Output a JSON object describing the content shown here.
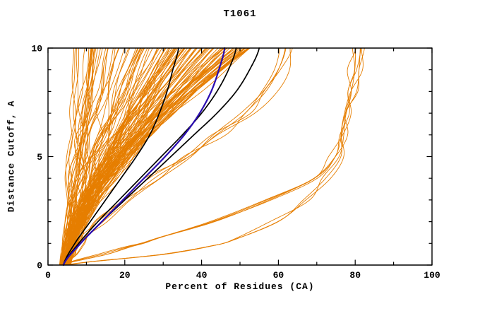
{
  "title": "T1061",
  "chart_data": {
    "type": "line",
    "title": "T1061",
    "xlabel": "Percent of Residues (CA)",
    "ylabel": "Distance Cutoff, A",
    "xlim": [
      0,
      100
    ],
    "ylim": [
      0,
      10
    ],
    "x_ticks": [
      0,
      20,
      40,
      60,
      80,
      100
    ],
    "x_minor_step": 10,
    "y_ticks": [
      0,
      5,
      10
    ],
    "y_minor_step": 1,
    "grid": false,
    "legend": "none",
    "colors": {
      "ensemble": "#E67E00",
      "highlight": "#2A0CB0",
      "reference": "#000000",
      "axis": "#000000",
      "background": "#FFFFFF"
    },
    "ensemble": {
      "description": "Large family of orange model curves fanning from origin (~4% at cutoff 0) to tops between ~7% and ~82% of residues",
      "color": "#E67E00",
      "seed": 20611,
      "fan": {
        "count": 125,
        "x0_range": [
          3,
          6
        ],
        "top_min": 6,
        "top_span": 47,
        "top_skew": 0.85,
        "p_base": 0.65,
        "p_top_coupling": 0.75,
        "p_rand": 0.35,
        "wiggle_max": 2.2
      },
      "bundles": [
        {
          "name": "mid-right-bundle",
          "count": 5,
          "jitter": 1.8,
          "top_extra": [
            0,
            6
          ],
          "y_nodes": [
            0,
            0.5,
            1,
            2,
            3,
            4,
            5,
            6,
            7,
            8,
            9,
            10
          ],
          "x_base": [
            4,
            6,
            8,
            13,
            19,
            26,
            34,
            42,
            49,
            54,
            57,
            59
          ]
        },
        {
          "name": "far-right-bundle",
          "count": 4,
          "jitter": 1.5,
          "top_extra": [
            0,
            4
          ],
          "y_nodes": [
            0,
            0.5,
            1,
            2,
            3,
            4,
            5,
            6,
            7,
            8,
            9,
            10
          ],
          "x_base": [
            4,
            14,
            24,
            42,
            57,
            68,
            73.5,
            75.5,
            76.5,
            77,
            77.5,
            78.5
          ]
        },
        {
          "name": "far-right-low-run-bundle",
          "count": 3,
          "jitter": 1.5,
          "top_extra": [
            0,
            3
          ],
          "y_nodes": [
            0,
            0.5,
            1,
            2,
            3,
            4,
            5,
            6,
            7,
            8,
            9,
            10
          ],
          "x_base": [
            5,
            30,
            45,
            58,
            66,
            71,
            74,
            75.5,
            76.5,
            77,
            78,
            79
          ]
        }
      ]
    },
    "highlight_series": [
      {
        "name": "black-reference-curve-1",
        "color": "#000000",
        "width": 1.7,
        "y_nodes": [
          0,
          1,
          2,
          3,
          4,
          5,
          6,
          7,
          8,
          9,
          10
        ],
        "x_nodes": [
          4,
          7,
          11,
          15,
          19,
          23,
          26.5,
          29,
          31,
          32.5,
          34
        ]
      },
      {
        "name": "black-reference-curve-2",
        "color": "#000000",
        "width": 1.7,
        "y_nodes": [
          0,
          1,
          2,
          3,
          4,
          5,
          6,
          7,
          8,
          9,
          10
        ],
        "x_nodes": [
          4,
          8,
          13,
          18.5,
          24,
          29.5,
          35,
          40,
          44,
          47,
          49
        ]
      },
      {
        "name": "black-reference-curve-3",
        "color": "#000000",
        "width": 1.7,
        "y_nodes": [
          0,
          1,
          2,
          3,
          4,
          5,
          6,
          7,
          8,
          9,
          10
        ],
        "x_nodes": [
          4,
          8.5,
          14,
          20,
          26,
          32,
          38,
          44,
          49,
          52.5,
          55
        ]
      },
      {
        "name": "blue-highlight-curve",
        "color": "#2A0CB0",
        "width": 2.2,
        "y_nodes": [
          0,
          1,
          2,
          3,
          4,
          5,
          6,
          7,
          8,
          9,
          10
        ],
        "x_nodes": [
          4,
          8.5,
          14,
          19.5,
          25,
          30.5,
          35.5,
          39.5,
          42.5,
          44.5,
          46
        ]
      }
    ]
  }
}
